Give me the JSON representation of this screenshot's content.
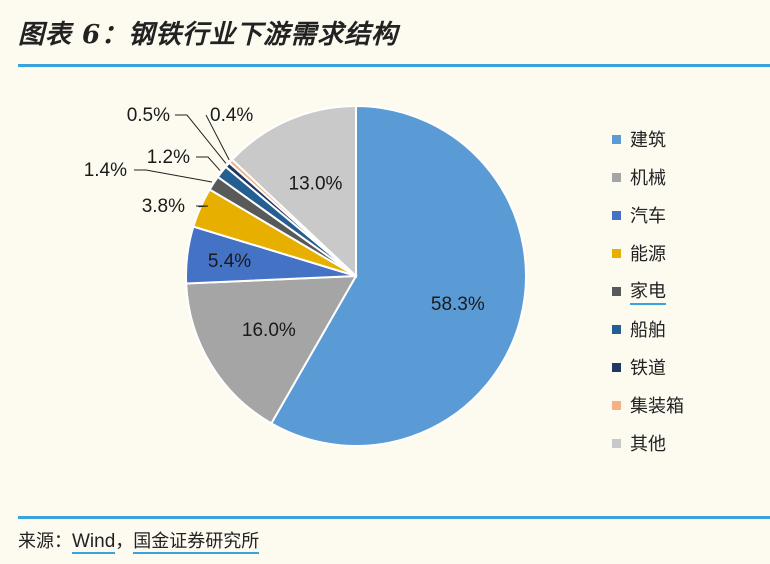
{
  "header": {
    "title": "图表 6：钢铁行业下游需求结构"
  },
  "footer": {
    "source_prefix": "来源：",
    "source_wind": "Wind",
    "source_sep": "，",
    "source_inst": "国金证券研究所"
  },
  "chart_data": {
    "type": "pie",
    "title": "",
    "slices": [
      {
        "name": "建筑",
        "value": 58.3,
        "label": "58.3%",
        "color": "#5b9bd5"
      },
      {
        "name": "机械",
        "value": 16.0,
        "label": "16.0%",
        "color": "#a5a5a5"
      },
      {
        "name": "汽车",
        "value": 5.4,
        "label": "5.4%",
        "color": "#4472c4"
      },
      {
        "name": "能源",
        "value": 3.8,
        "label": "3.8%",
        "color": "#e7b000"
      },
      {
        "name": "家电",
        "value": 1.4,
        "label": "1.4%",
        "color": "#595959"
      },
      {
        "name": "船舶",
        "value": 1.2,
        "label": "1.2%",
        "color": "#255e91"
      },
      {
        "name": "铁道",
        "value": 0.5,
        "label": "0.5%",
        "color": "#1f3864"
      },
      {
        "name": "集装箱",
        "value": 0.4,
        "label": "0.4%",
        "color": "#f4b183"
      },
      {
        "name": "其他",
        "value": 13.0,
        "label": "13.0%",
        "color": "#c9c9c9"
      }
    ],
    "legend_position": "right",
    "direction": "clockwise from top"
  }
}
